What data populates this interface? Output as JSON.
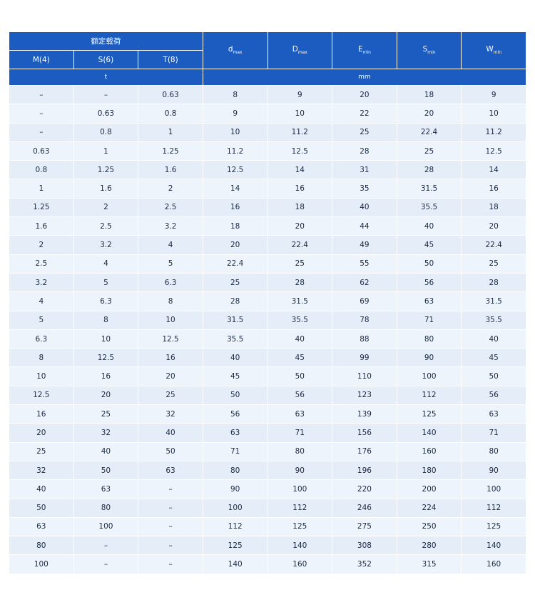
{
  "header": {
    "load_label": "额定载荷",
    "classes": [
      "M(4)",
      "S(6)",
      "T(8)"
    ],
    "dims": [
      {
        "main": "d",
        "sub": "max"
      },
      {
        "main": "D",
        "sub": "max"
      },
      {
        "main": "E",
        "sub": "min"
      },
      {
        "main": "S",
        "sub": "min"
      },
      {
        "main": "W",
        "sub": "min"
      }
    ],
    "units": [
      "t",
      "mm"
    ]
  },
  "table": {
    "rows": [
      [
        "–",
        "–",
        "0.63",
        "8",
        "9",
        "20",
        "18",
        "9"
      ],
      [
        "–",
        "0.63",
        "0.8",
        "9",
        "10",
        "22",
        "20",
        "10"
      ],
      [
        "–",
        "0.8",
        "1",
        "10",
        "11.2",
        "25",
        "22.4",
        "11.2"
      ],
      [
        "0.63",
        "1",
        "1.25",
        "11.2",
        "12.5",
        "28",
        "25",
        "12.5"
      ],
      [
        "0.8",
        "1.25",
        "1.6",
        "12.5",
        "14",
        "31",
        "28",
        "14"
      ],
      [
        "1",
        "1.6",
        "2",
        "14",
        "16",
        "35",
        "31.5",
        "16"
      ],
      [
        "1.25",
        "2",
        "2.5",
        "16",
        "18",
        "40",
        "35.5",
        "18"
      ],
      [
        "1.6",
        "2.5",
        "3.2",
        "18",
        "20",
        "44",
        "40",
        "20"
      ],
      [
        "2",
        "3.2",
        "4",
        "20",
        "22.4",
        "49",
        "45",
        "22.4"
      ],
      [
        "2.5",
        "4",
        "5",
        "22.4",
        "25",
        "55",
        "50",
        "25"
      ],
      [
        "3.2",
        "5",
        "6.3",
        "25",
        "28",
        "62",
        "56",
        "28"
      ],
      [
        "4",
        "6.3",
        "8",
        "28",
        "31.5",
        "69",
        "63",
        "31.5"
      ],
      [
        "5",
        "8",
        "10",
        "31.5",
        "35.5",
        "78",
        "71",
        "35.5"
      ],
      [
        "6.3",
        "10",
        "12.5",
        "35.5",
        "40",
        "88",
        "80",
        "40"
      ],
      [
        "8",
        "12.5",
        "16",
        "40",
        "45",
        "99",
        "90",
        "45"
      ],
      [
        "10",
        "16",
        "20",
        "45",
        "50",
        "110",
        "100",
        "50"
      ],
      [
        "12.5",
        "20",
        "25",
        "50",
        "56",
        "123",
        "112",
        "56"
      ],
      [
        "16",
        "25",
        "32",
        "56",
        "63",
        "139",
        "125",
        "63"
      ],
      [
        "20",
        "32",
        "40",
        "63",
        "71",
        "156",
        "140",
        "71"
      ],
      [
        "25",
        "40",
        "50",
        "71",
        "80",
        "176",
        "160",
        "80"
      ],
      [
        "32",
        "50",
        "63",
        "80",
        "90",
        "196",
        "180",
        "90"
      ],
      [
        "40",
        "63",
        "–",
        "90",
        "100",
        "220",
        "200",
        "100"
      ],
      [
        "50",
        "80",
        "–",
        "100",
        "112",
        "246",
        "224",
        "112"
      ],
      [
        "63",
        "100",
        "–",
        "112",
        "125",
        "275",
        "250",
        "125"
      ],
      [
        "80",
        "–",
        "–",
        "125",
        "140",
        "308",
        "280",
        "140"
      ],
      [
        "100",
        "–",
        "–",
        "140",
        "160",
        "352",
        "315",
        "160"
      ]
    ]
  }
}
